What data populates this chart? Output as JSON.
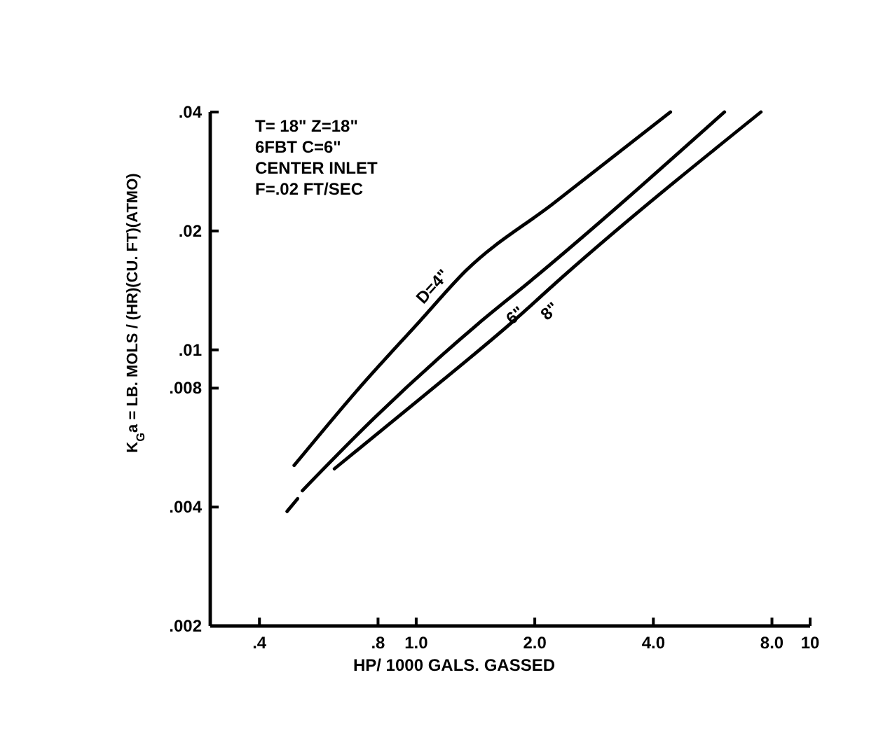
{
  "chart_data": {
    "type": "line",
    "xlabel": "HP/ 1000 GALS. GASSED",
    "ylabel": "K$_{G}$a = LB. MOLS / (HR)(CU. FT)(ATMO)",
    "log": "xy",
    "xlim": [
      0.3,
      10
    ],
    "ylim": [
      0.002,
      0.04
    ],
    "xticks": [
      {
        "value": 0.4,
        "label": ".4"
      },
      {
        "value": 0.8,
        "label": ".8"
      },
      {
        "value": 1,
        "label": "1.0"
      },
      {
        "value": 2,
        "label": "2.0"
      },
      {
        "value": 4,
        "label": "4.0"
      },
      {
        "value": 8,
        "label": "8.0"
      },
      10
    ],
    "yticks": [
      {
        "value": 0.002,
        "label": ".002"
      },
      {
        "value": 0.004,
        "label": ".004"
      },
      {
        "value": 0.008,
        "label": ".008"
      },
      {
        "value": 0.01,
        "label": ".01"
      },
      {
        "value": 0.02,
        "label": ".02"
      },
      {
        "value": 0.04,
        "label": ".04"
      }
    ],
    "grid": false,
    "marker": "none",
    "line_style": "solid",
    "annotations": [
      "T= 18\" Z=18\"",
      "6FBT  C=6\"",
      "CENTER INLET",
      "F=.02 FT/SEC"
    ],
    "series": [
      {
        "name": "D=4\"",
        "color": "#000000",
        "x": [
          0.49,
          0.716,
          1.02,
          1.34,
          2.22,
          4.42
        ],
        "values": [
          0.0051,
          0.008,
          0.0118,
          0.0159,
          0.0234,
          0.04
        ]
      },
      {
        "name": "6\"",
        "color": "#000000",
        "x": [
          0.514,
          0.78,
          1.43,
          1.96,
          6.06
        ],
        "values": [
          0.0044,
          0.0067,
          0.0116,
          0.015,
          0.04
        ]
      },
      {
        "name": "8\"",
        "color": "#000000",
        "x": [
          0.62,
          1.02,
          1.76,
          2.37,
          7.5
        ],
        "values": [
          0.005,
          0.0075,
          0.0118,
          0.0154,
          0.04
        ]
      },
      {
        "color": "#000000",
        "x": [
          0.47,
          0.5
        ],
        "values": [
          0.0039,
          0.0042
        ]
      }
    ]
  }
}
